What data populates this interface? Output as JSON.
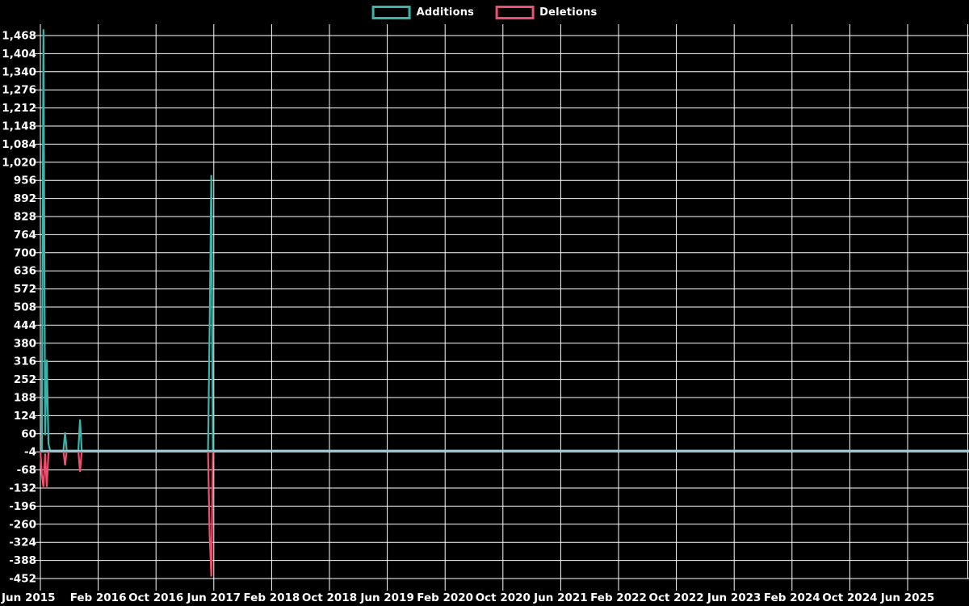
{
  "legend": {
    "additions_label": "Additions",
    "deletions_label": "Deletions"
  },
  "chart_data": {
    "type": "line",
    "title": "",
    "xlabel": "",
    "ylabel": "",
    "background_color": "#000000",
    "grid": true,
    "grid_color": "#ffffff",
    "text_color": "#ffffff",
    "zero_line_color": "#a6cfdd",
    "legend_position": "top-center",
    "x_ticks": [
      "Jun 2015",
      "Feb 2016",
      "Oct 2016",
      "Jun 2017",
      "Feb 2018",
      "Oct 2018",
      "Jun 2019",
      "Feb 2020",
      "Oct 2020",
      "Jun 2021",
      "Feb 2022",
      "Oct 2022",
      "Jun 2023",
      "Feb 2024",
      "Oct 2024",
      "Jun 2025"
    ],
    "y_ticks": [
      "1,468",
      "1,404",
      "1,340",
      "1,276",
      "1,212",
      "1,148",
      "1,084",
      "1,020",
      "956",
      "892",
      "828",
      "764",
      "700",
      "636",
      "572",
      "508",
      "444",
      "380",
      "316",
      "252",
      "188",
      "124",
      "60",
      "-4",
      "-68",
      "-132",
      "-196",
      "-260",
      "-324",
      "-388",
      "-452"
    ],
    "y_max_label": 1468,
    "y_min_label": -452,
    "y_step": 64,
    "x_range": [
      "2015-06-01",
      "2026-02-15"
    ],
    "series": [
      {
        "name": "Additions",
        "color": "#3ab5ad",
        "points": [
          [
            "2015-06-01",
            0
          ],
          [
            "2015-06-07",
            2
          ],
          [
            "2015-06-14",
            1490
          ],
          [
            "2015-06-21",
            55
          ],
          [
            "2015-06-28",
            322
          ],
          [
            "2015-07-05",
            25
          ],
          [
            "2015-07-12",
            0
          ],
          [
            "2015-09-06",
            0
          ],
          [
            "2015-09-13",
            65
          ],
          [
            "2015-09-20",
            0
          ],
          [
            "2015-11-08",
            0
          ],
          [
            "2015-11-15",
            110
          ],
          [
            "2015-11-22",
            0
          ],
          [
            "2017-05-07",
            0
          ],
          [
            "2017-05-14",
            430
          ],
          [
            "2017-05-21",
            975
          ],
          [
            "2017-05-28",
            0
          ],
          [
            "2026-02-15",
            0
          ]
        ]
      },
      {
        "name": "Deletions",
        "color": "#f14d6f",
        "points": [
          [
            "2015-06-01",
            0
          ],
          [
            "2015-06-07",
            -85
          ],
          [
            "2015-06-14",
            -128
          ],
          [
            "2015-06-21",
            -10
          ],
          [
            "2015-06-28",
            -128
          ],
          [
            "2015-07-05",
            -8
          ],
          [
            "2015-07-12",
            0
          ],
          [
            "2015-09-06",
            0
          ],
          [
            "2015-09-13",
            -52
          ],
          [
            "2015-09-20",
            0
          ],
          [
            "2015-11-08",
            0
          ],
          [
            "2015-11-15",
            -75
          ],
          [
            "2015-11-22",
            0
          ],
          [
            "2017-05-07",
            0
          ],
          [
            "2017-05-14",
            -295
          ],
          [
            "2017-05-21",
            -445
          ],
          [
            "2017-05-28",
            0
          ],
          [
            "2026-02-15",
            0
          ]
        ]
      }
    ]
  }
}
